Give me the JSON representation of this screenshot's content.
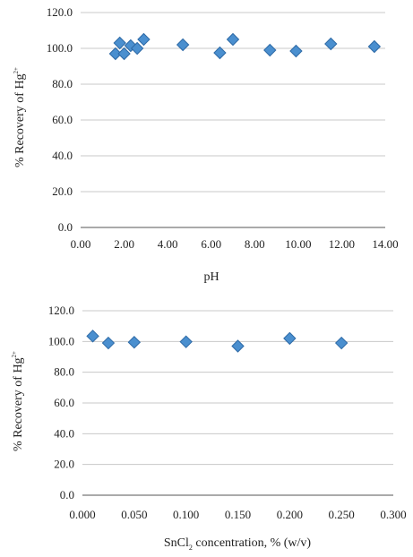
{
  "chart_data": [
    {
      "type": "scatter",
      "title": "",
      "xlabel": "pH",
      "ylabel_main": "% Recovery of Hg",
      "ylabel_sup": "2+",
      "xlim": [
        0,
        14
      ],
      "ylim": [
        0,
        120
      ],
      "x_ticks": [
        "0.00",
        "2.00",
        "4.00",
        "6.00",
        "8.00",
        "10.00",
        "12.00",
        "14.00"
      ],
      "y_ticks": [
        "0.0",
        "20.0",
        "40.0",
        "60.0",
        "80.0",
        "100.0",
        "120.0"
      ],
      "grid": "horizontal",
      "legend": "none",
      "marker_color": "#4a8fcf",
      "series": [
        {
          "points": [
            {
              "x": 1.6,
              "y": 97.0
            },
            {
              "x": 1.8,
              "y": 103.0
            },
            {
              "x": 2.0,
              "y": 97.0
            },
            {
              "x": 2.3,
              "y": 101.5
            },
            {
              "x": 2.6,
              "y": 100.0
            },
            {
              "x": 2.9,
              "y": 105.0
            },
            {
              "x": 4.7,
              "y": 102.0
            },
            {
              "x": 6.4,
              "y": 97.5
            },
            {
              "x": 7.0,
              "y": 105.0
            },
            {
              "x": 8.7,
              "y": 99.0
            },
            {
              "x": 9.9,
              "y": 98.5
            },
            {
              "x": 11.5,
              "y": 102.5
            },
            {
              "x": 13.5,
              "y": 101.0
            }
          ]
        }
      ]
    },
    {
      "type": "scatter",
      "title": "",
      "xlabel_prefix": "SnCl",
      "xlabel_sub": "2",
      "xlabel_suffix": " concentration, % (w/v)",
      "ylabel_main": "% Recovery of Hg",
      "ylabel_sup": "2+",
      "xlim": [
        0,
        0.3
      ],
      "ylim": [
        0,
        120
      ],
      "x_ticks": [
        "0.000",
        "0.050",
        "0.100",
        "0.150",
        "0.200",
        "0.250",
        "0.300"
      ],
      "y_ticks": [
        "0.0",
        "20.0",
        "40.0",
        "60.0",
        "80.0",
        "100.0",
        "120.0"
      ],
      "grid": "horizontal",
      "legend": "none",
      "marker_color": "#4a8fcf",
      "series": [
        {
          "points": [
            {
              "x": 0.01,
              "y": 103.5
            },
            {
              "x": 0.025,
              "y": 99.0
            },
            {
              "x": 0.05,
              "y": 99.5
            },
            {
              "x": 0.1,
              "y": 99.8
            },
            {
              "x": 0.15,
              "y": 97.0
            },
            {
              "x": 0.2,
              "y": 102.0
            },
            {
              "x": 0.25,
              "y": 99.0
            }
          ]
        }
      ]
    }
  ]
}
